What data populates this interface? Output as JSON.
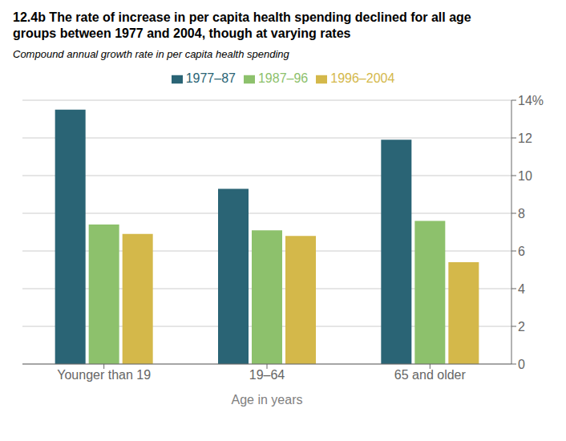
{
  "chart_data": {
    "type": "bar",
    "title": "12.4b The rate of increase in per capita health spending declined for all age\ngroups between 1977 and 2004, though at varying rates",
    "subtitle": "Compound annual growth rate in per capita health spending",
    "xlabel": "Age in years",
    "categories": [
      "Younger than 19",
      "19–64",
      "65 and older"
    ],
    "series": [
      {
        "name": "1977–87",
        "color": "#2a6475",
        "values": [
          13.5,
          9.3,
          11.9
        ]
      },
      {
        "name": "1987–96",
        "color": "#8dc16c",
        "values": [
          7.4,
          7.1,
          7.6
        ]
      },
      {
        "name": "1996–2004",
        "color": "#d4b84a",
        "values": [
          6.9,
          6.8,
          5.4
        ]
      }
    ],
    "ylim": [
      0,
      14
    ],
    "yticks": [
      0,
      2,
      4,
      6,
      8,
      10,
      12,
      {
        "value": 14,
        "label": "14%"
      }
    ],
    "grid": true,
    "legend": "top"
  }
}
